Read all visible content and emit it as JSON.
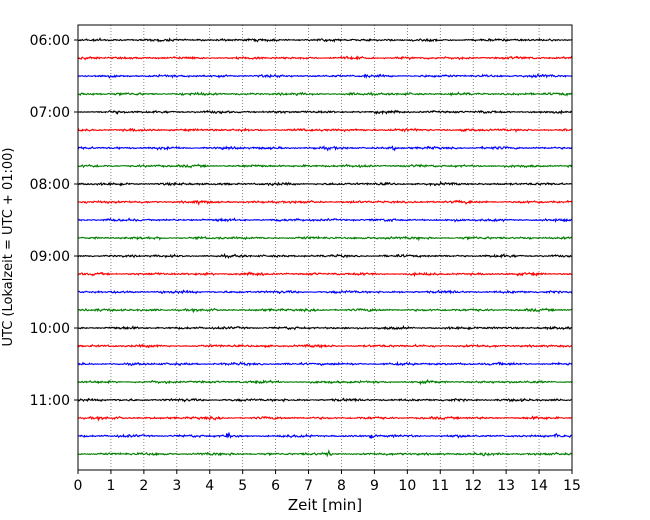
{
  "chart_data": {
    "type": "line",
    "title": "",
    "xlabel": "Zeit  [min]",
    "ylabel": "UTC (Lokalzeit = UTC + 01:00)",
    "xlim": [
      0,
      15
    ],
    "x_ticks": [
      "0",
      "1",
      "2",
      "3",
      "4",
      "5",
      "6",
      "7",
      "8",
      "9",
      "10",
      "11",
      "12",
      "13",
      "14",
      "15"
    ],
    "y_ticks": [
      "06:00",
      "07:00",
      "08:00",
      "09:00",
      "10:00",
      "11:00"
    ],
    "grid": "vertical dotted lines at each minute",
    "trace_interval_minutes": 15,
    "series": [
      {
        "start": "06:00",
        "color": "#000000"
      },
      {
        "start": "06:15",
        "color": "#ff0000"
      },
      {
        "start": "06:30",
        "color": "#0000ff"
      },
      {
        "start": "06:45",
        "color": "#007f00"
      },
      {
        "start": "07:00",
        "color": "#000000"
      },
      {
        "start": "07:15",
        "color": "#ff0000"
      },
      {
        "start": "07:30",
        "color": "#0000ff"
      },
      {
        "start": "07:45",
        "color": "#007f00"
      },
      {
        "start": "08:00",
        "color": "#000000"
      },
      {
        "start": "08:15",
        "color": "#ff0000"
      },
      {
        "start": "08:30",
        "color": "#0000ff"
      },
      {
        "start": "08:45",
        "color": "#007f00"
      },
      {
        "start": "09:00",
        "color": "#000000"
      },
      {
        "start": "09:15",
        "color": "#ff0000"
      },
      {
        "start": "09:30",
        "color": "#0000ff"
      },
      {
        "start": "09:45",
        "color": "#007f00"
      },
      {
        "start": "10:00",
        "color": "#000000"
      },
      {
        "start": "10:15",
        "color": "#ff0000"
      },
      {
        "start": "10:30",
        "color": "#0000ff"
      },
      {
        "start": "10:45",
        "color": "#007f00"
      },
      {
        "start": "11:00",
        "color": "#000000"
      },
      {
        "start": "11:15",
        "color": "#ff0000"
      },
      {
        "start": "11:30",
        "color": "#0000ff"
      },
      {
        "start": "11:45",
        "color": "#007f00"
      }
    ],
    "events": [
      {
        "trace": 22,
        "minute": 4.55,
        "amplitude": 3.5
      },
      {
        "trace": 22,
        "minute": 8.9,
        "amplitude": 1.6
      },
      {
        "trace": 22,
        "minute": 14.55,
        "amplitude": 1.6
      },
      {
        "trace": 2,
        "minute": 8.7,
        "amplitude": 1.4
      },
      {
        "trace": 6,
        "minute": 9.6,
        "amplitude": 1.5
      },
      {
        "trace": 14,
        "minute": 2.6,
        "amplitude": 1.5
      },
      {
        "trace": 9,
        "minute": 3.7,
        "amplitude": 1.3
      },
      {
        "trace": 23,
        "minute": 7.6,
        "amplitude": 1.6
      },
      {
        "trace": 23,
        "minute": 12.3,
        "amplitude": 1.3
      }
    ]
  }
}
